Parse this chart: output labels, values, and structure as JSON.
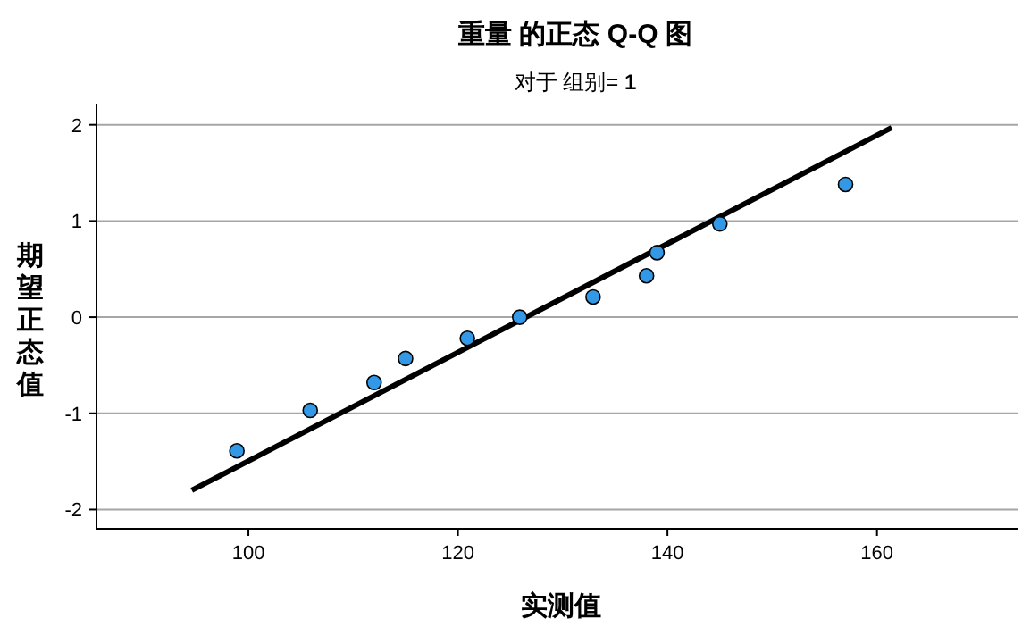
{
  "chart_data": {
    "type": "scatter",
    "title": "重量 的正态 Q-Q 图",
    "subtitle": "对于 组别= **1**",
    "xlabel": "实测值",
    "ylabel": "期望正态值",
    "xlim": [
      85.5,
      173.5
    ],
    "ylim": [
      -2.2,
      2.22
    ],
    "xticks": [
      100,
      120,
      140,
      160
    ],
    "yticks": [
      -2,
      -1,
      0,
      1,
      2
    ],
    "grid": "y",
    "series": [
      {
        "marker": "circle",
        "color": "#3399e6",
        "x": [
          98.9,
          105.9,
          112.0,
          115.0,
          120.9,
          125.9,
          132.9,
          138.0,
          139.0,
          145.0,
          157.0
        ],
        "values": [
          -1.39,
          -0.97,
          -0.68,
          -0.43,
          -0.22,
          0,
          0.21,
          0.43,
          0.67,
          0.97,
          1.38
        ]
      },
      {
        "type": "line",
        "color": "#000000",
        "x": [
          94.6,
          161.4
        ],
        "values": [
          -1.8,
          1.97
        ]
      }
    ]
  }
}
